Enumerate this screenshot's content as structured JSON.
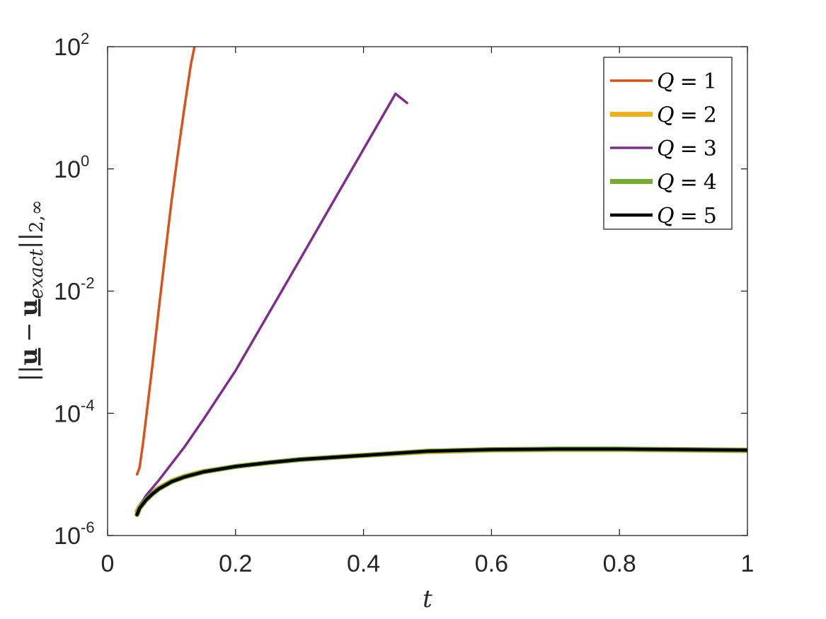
{
  "chart_data": {
    "type": "line",
    "xlabel": "t",
    "ylabel": "||u − u_exact||_{2,∞}",
    "ylabel_parts": {
      "norm_open": "||",
      "bold": "u",
      "minus": "−",
      "bold2": "u",
      "sub": "exact",
      "norm_close": "||",
      "norm_sub": "2,∞"
    },
    "xlim": [
      0,
      1
    ],
    "ylim": [
      1e-06,
      100
    ],
    "yscale": "log",
    "xticks": [
      0,
      0.2,
      0.4,
      0.6,
      0.8,
      1
    ],
    "xtick_labels": [
      "0",
      "0.2",
      "0.4",
      "0.6",
      "0.8",
      "1"
    ],
    "yticks": [
      1e-06,
      0.0001,
      0.01,
      1,
      100
    ],
    "ytick_bases": [
      "10",
      "10",
      "10",
      "10",
      "10"
    ],
    "ytick_exps": [
      "-6",
      "-4",
      "-2",
      "0",
      "2"
    ],
    "grid": false,
    "legend_position": "top-right",
    "series": [
      {
        "name": "Q = 1",
        "color": "#D95319",
        "width": "thin",
        "x": [
          0.046,
          0.05,
          0.055,
          0.06,
          0.07,
          0.08,
          0.09,
          0.1,
          0.11,
          0.12,
          0.13,
          0.145
        ],
        "y": [
          1e-05,
          1.3e-05,
          3e-05,
          8e-05,
          0.0006,
          0.005,
          0.04,
          0.3,
          1.8,
          10,
          50,
          300
        ]
      },
      {
        "name": "Q = 2",
        "color": "#EDB120",
        "width": "thick",
        "x": [
          0.046,
          0.05,
          0.06,
          0.07,
          0.08,
          0.1,
          0.12,
          0.15,
          0.2,
          0.25,
          0.3,
          0.4,
          0.5,
          0.6,
          0.7,
          0.8,
          0.9,
          1.0
        ],
        "y": [
          2.5e-06,
          3e-06,
          4e-06,
          5e-06,
          6e-06,
          7.8e-06,
          9.3e-06,
          1.12e-05,
          1.35e-05,
          1.55e-05,
          1.75e-05,
          2.05e-05,
          2.35e-05,
          2.5e-05,
          2.55e-05,
          2.55e-05,
          2.5e-05,
          2.45e-05
        ]
      },
      {
        "name": "Q = 3",
        "color": "#7E2F8E",
        "width": "thin",
        "x": [
          0.046,
          0.05,
          0.06,
          0.08,
          0.1,
          0.12,
          0.15,
          0.2,
          0.25,
          0.3,
          0.35,
          0.4,
          0.45,
          0.468
        ],
        "y": [
          2.5e-06,
          3e-06,
          4.5e-06,
          8e-06,
          1.5e-05,
          2.8e-05,
          8e-05,
          0.0005,
          0.004,
          0.032,
          0.26,
          2.1,
          17,
          12
        ]
      },
      {
        "name": "Q = 4",
        "color": "#77AC30",
        "width": "thick",
        "x": [
          0.046,
          0.05,
          0.06,
          0.07,
          0.08,
          0.1,
          0.12,
          0.15,
          0.2,
          0.25,
          0.3,
          0.4,
          0.5,
          0.6,
          0.7,
          0.8,
          0.9,
          1.0
        ],
        "y": [
          2.2e-06,
          2.8e-06,
          3.8e-06,
          4.8e-06,
          5.8e-06,
          7.6e-06,
          9.1e-06,
          1.1e-05,
          1.35e-05,
          1.55e-05,
          1.75e-05,
          2.05e-05,
          2.4e-05,
          2.55e-05,
          2.6e-05,
          2.6e-05,
          2.55e-05,
          2.5e-05
        ]
      },
      {
        "name": "Q = 5",
        "color": "#000000",
        "width": "medium",
        "x": [
          0.046,
          0.05,
          0.06,
          0.07,
          0.08,
          0.1,
          0.12,
          0.15,
          0.2,
          0.25,
          0.3,
          0.4,
          0.5,
          0.6,
          0.7,
          0.8,
          0.9,
          1.0
        ],
        "y": [
          2.2e-06,
          2.8e-06,
          3.8e-06,
          4.8e-06,
          5.8e-06,
          7.6e-06,
          9.1e-06,
          1.1e-05,
          1.35e-05,
          1.55e-05,
          1.75e-05,
          2.05e-05,
          2.4e-05,
          2.55e-05,
          2.6e-05,
          2.6e-05,
          2.55e-05,
          2.5e-05
        ]
      }
    ],
    "legend": [
      {
        "var": "Q",
        "eq": "=",
        "val": "1",
        "color": "#D95319",
        "width": "thin"
      },
      {
        "var": "Q",
        "eq": "=",
        "val": "2",
        "color": "#EDB120",
        "width": "thick"
      },
      {
        "var": "Q",
        "eq": "=",
        "val": "3",
        "color": "#7E2F8E",
        "width": "thin"
      },
      {
        "var": "Q",
        "eq": "=",
        "val": "4",
        "color": "#77AC30",
        "width": "thick"
      },
      {
        "var": "Q",
        "eq": "=",
        "val": "5",
        "color": "#000000",
        "width": "medium"
      }
    ]
  }
}
